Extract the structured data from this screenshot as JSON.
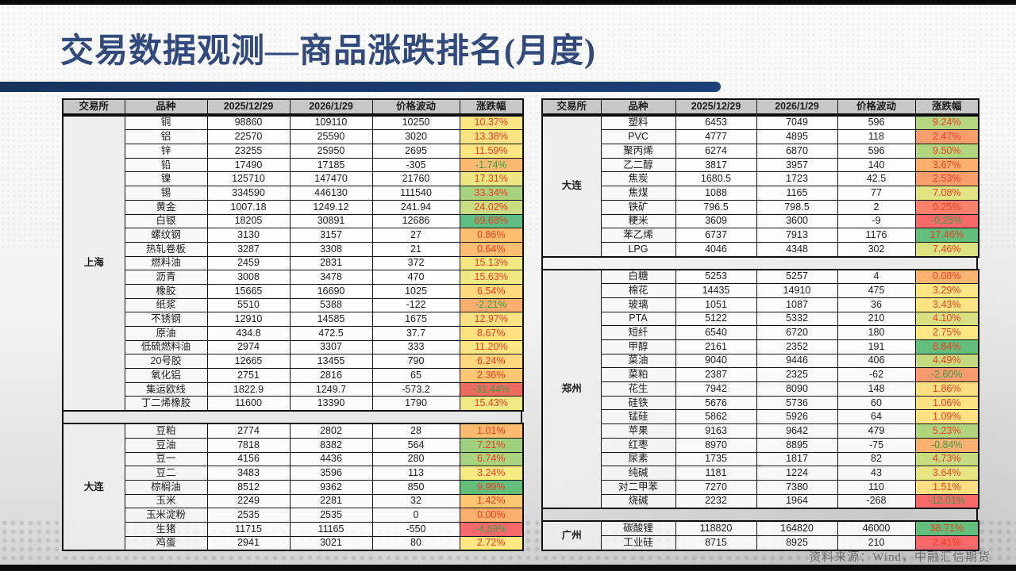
{
  "title": "交易数据观测—商品涨跌排名(月度)",
  "source": "资料来源：Wind，中融汇信期货",
  "columns": [
    "交易所",
    "品种",
    "2025/12/29",
    "2026/1/29",
    "价格波动",
    "涨跌幅"
  ],
  "colors": {
    "title_text": "#31497B",
    "title_rule": "#1C3E79",
    "header_bg": "#C7C7C7",
    "pct_up_text": "#F43A22",
    "pct_down_text": "#35A045",
    "frame_bar": "#0B0B0B"
  },
  "left_panel": {
    "sections": [
      {
        "exchange": "上海",
        "rows": [
          [
            "铜",
            "98860",
            "109110",
            "10250",
            "10.37%",
            "#FEE583"
          ],
          [
            "铝",
            "22570",
            "25590",
            "3020",
            "13.38%",
            "#F8E383"
          ],
          [
            "锌",
            "23255",
            "25950",
            "2695",
            "11.59%",
            "#FDE683"
          ],
          [
            "铅",
            "17490",
            "17185",
            "-305",
            "-1.74%",
            "#FBBA70"
          ],
          [
            "镍",
            "125710",
            "147470",
            "21760",
            "17.31%",
            "#EDE783"
          ],
          [
            "锡",
            "334590",
            "446130",
            "111540",
            "33.34%",
            "#A8D27F"
          ],
          [
            "黄金",
            "1007.18",
            "1249.12",
            "241.94",
            "24.02%",
            "#C9DC81"
          ],
          [
            "白银",
            "18205",
            "30891",
            "12686",
            "69.68%",
            "#5FBC83"
          ],
          [
            "螺纹钢",
            "3130",
            "3157",
            "27",
            "0.86%",
            "#FBBF70"
          ],
          [
            "热轧卷板",
            "3287",
            "3308",
            "21",
            "0.64%",
            "#FBBD6F"
          ],
          [
            "燃料油",
            "2459",
            "2831",
            "372",
            "15.13%",
            "#F2E983"
          ],
          [
            "沥青",
            "3008",
            "3478",
            "470",
            "15.63%",
            "#F0E883"
          ],
          [
            "橡胶",
            "15665",
            "16690",
            "1025",
            "6.54%",
            "#FED97E"
          ],
          [
            "纸浆",
            "5510",
            "5388",
            "-122",
            "-2.21%",
            "#FAAE6D"
          ],
          [
            "不锈钢",
            "12910",
            "14585",
            "1675",
            "12.97%",
            "#FAE283"
          ],
          [
            "原油",
            "434.8",
            "472.5",
            "37.7",
            "8.67%",
            "#FFE182"
          ],
          [
            "低硫燃料油",
            "2974",
            "3307",
            "333",
            "11.20%",
            "#FEE583"
          ],
          [
            "20号胶",
            "12665",
            "13455",
            "790",
            "6.24%",
            "#FED77E"
          ],
          [
            "氧化铝",
            "2751",
            "2816",
            "65",
            "2.36%",
            "#FCC673"
          ],
          [
            "集运欧线",
            "1822.9",
            "1249.7",
            "-573.2",
            "-31.44%",
            "#EE6C5F"
          ],
          [
            "丁二烯橡胶",
            "11600",
            "13390",
            "1790",
            "15.43%",
            "#F1E983"
          ]
        ]
      },
      {
        "exchange": "大连",
        "rows": [
          [
            "豆粕",
            "2774",
            "2802",
            "28",
            "1.01%",
            "#FBBC70"
          ],
          [
            "豆油",
            "7818",
            "8382",
            "564",
            "7.21%",
            "#9FD07E"
          ],
          [
            "豆一",
            "4156",
            "4436",
            "280",
            "6.74%",
            "#AAD37F"
          ],
          [
            "豆二",
            "3483",
            "3596",
            "113",
            "3.24%",
            "#F6EA83"
          ],
          [
            "棕榈油",
            "8512",
            "9362",
            "850",
            "9.99%",
            "#63BE7B"
          ],
          [
            "玉米",
            "2249",
            "2281",
            "32",
            "1.42%",
            "#FCC673"
          ],
          [
            "玉米淀粉",
            "2535",
            "2535",
            "0",
            "0.00%",
            "#FAAF6C"
          ],
          [
            "生猪",
            "11715",
            "11165",
            "-550",
            "-4.69%",
            "#F8696B"
          ],
          [
            "鸡蛋",
            "2941",
            "3021",
            "80",
            "2.72%",
            "#FFE884"
          ]
        ]
      }
    ]
  },
  "right_panel": {
    "sections": [
      {
        "exchange": "大连",
        "rows": [
          [
            "塑料",
            "6453",
            "7049",
            "596",
            "9.24%",
            "#B5D680"
          ],
          [
            "PVC",
            "4777",
            "4895",
            "118",
            "2.47%",
            "#F99F6E"
          ],
          [
            "聚丙烯",
            "6274",
            "6870",
            "596",
            "9.50%",
            "#B2D57F"
          ],
          [
            "乙二醇",
            "3817",
            "3957",
            "140",
            "3.67%",
            "#FBB06E"
          ],
          [
            "焦炭",
            "1680.5",
            "1723",
            "42.5",
            "2.53%",
            "#F99F6D"
          ],
          [
            "焦煤",
            "1088",
            "1165",
            "77",
            "7.08%",
            "#E2E383"
          ],
          [
            "铁矿",
            "796.5",
            "798.5",
            "2",
            "0.25%",
            "#F8816C"
          ],
          [
            "粳米",
            "3609",
            "3600",
            "-9",
            "-0.25%",
            "#F8696B"
          ],
          [
            "苯乙烯",
            "6737",
            "7913",
            "1176",
            "17.46%",
            "#63BE7B"
          ],
          [
            "LPG",
            "4046",
            "4348",
            "302",
            "7.46%",
            "#DDE282"
          ]
        ]
      },
      {
        "exchange": "郑州",
        "rows": [
          [
            "白糖",
            "5253",
            "5257",
            "4",
            "0.08%",
            "#FBB46F"
          ],
          [
            "棉花",
            "14435",
            "14910",
            "475",
            "3.29%",
            "#FCE683"
          ],
          [
            "玻璃",
            "1051",
            "1087",
            "36",
            "3.43%",
            "#FBE583"
          ],
          [
            "PTA",
            "5122",
            "5332",
            "210",
            "4.10%",
            "#D8E082"
          ],
          [
            "短纤",
            "6540",
            "6720",
            "180",
            "2.75%",
            "#FDE883"
          ],
          [
            "甲醇",
            "2161",
            "2352",
            "191",
            "8.84%",
            "#63BE7B"
          ],
          [
            "菜油",
            "9040",
            "9446",
            "406",
            "4.49%",
            "#C3DA80"
          ],
          [
            "菜粕",
            "2387",
            "2325",
            "-62",
            "-2.60%",
            "#F99B6E"
          ],
          [
            "花生",
            "7942",
            "8090",
            "148",
            "1.86%",
            "#FFDE81"
          ],
          [
            "硅铁",
            "5676",
            "5736",
            "60",
            "1.06%",
            "#FEE182"
          ],
          [
            "锰硅",
            "5862",
            "5926",
            "64",
            "1.09%",
            "#FEE182"
          ],
          [
            "苹果",
            "9163",
            "9642",
            "479",
            "5.23%",
            "#B1D57F"
          ],
          [
            "红枣",
            "8970",
            "8895",
            "-75",
            "-0.84%",
            "#FBB16F"
          ],
          [
            "尿素",
            "1735",
            "1817",
            "82",
            "4.73%",
            "#C7DB81"
          ],
          [
            "纯碱",
            "1181",
            "1224",
            "43",
            "3.64%",
            "#E8E684"
          ],
          [
            "对二甲苯",
            "7270",
            "7380",
            "110",
            "1.51%",
            "#FFDF82"
          ],
          [
            "烧碱",
            "2232",
            "1964",
            "-268",
            "-12.01%",
            "#F8696B"
          ]
        ]
      },
      {
        "exchange": "广州",
        "rows": [
          [
            "碳酸锂",
            "118820",
            "164820",
            "46000",
            "38.71%",
            "#63BE7B"
          ],
          [
            "工业硅",
            "8715",
            "8925",
            "210",
            "2.41%",
            "#F8696B"
          ]
        ]
      }
    ]
  }
}
